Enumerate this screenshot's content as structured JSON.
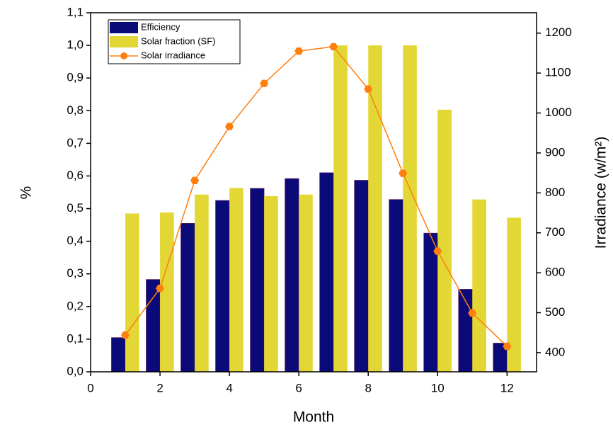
{
  "chart_data": {
    "type": "bar-line",
    "x_label": "Month",
    "y_label": "%",
    "y2_label": "Irradiance (w/m²)",
    "x": [
      1,
      2,
      3,
      4,
      5,
      6,
      7,
      8,
      9,
      10,
      11,
      12
    ],
    "series": [
      {
        "name": "Efficiency",
        "type": "bar",
        "color": "#0a0a78",
        "values": [
          0.105,
          0.283,
          0.455,
          0.525,
          0.562,
          0.592,
          0.61,
          0.587,
          0.528,
          0.425,
          0.253,
          0.088
        ]
      },
      {
        "name": "Solar fraction (SF)",
        "type": "bar",
        "color": "#e3d735",
        "values": [
          0.485,
          0.488,
          0.543,
          0.563,
          0.538,
          0.543,
          1.0,
          1.0,
          1.0,
          0.803,
          0.528,
          0.472
        ]
      },
      {
        "name": "Solar irradiance",
        "type": "line",
        "axis": "y2",
        "color": "#ff7f0e",
        "values": [
          444,
          561,
          831,
          966,
          1074,
          1155,
          1166,
          1060,
          849,
          654,
          499,
          416
        ]
      }
    ],
    "xlim": [
      0,
      12.85
    ],
    "xticks": [
      0,
      2,
      4,
      6,
      8,
      10,
      12
    ],
    "ylim": [
      0,
      1.1
    ],
    "yticks": [
      {
        "value": 0,
        "label": "0,0"
      },
      {
        "value": 0.1,
        "label": "0,1"
      },
      {
        "value": 0.2,
        "label": "0,2"
      },
      {
        "value": 0.3,
        "label": "0,3"
      },
      {
        "value": 0.4,
        "label": "0,4"
      },
      {
        "value": 0.5,
        "label": "0,5"
      },
      {
        "value": 0.6,
        "label": "0,6"
      },
      {
        "value": 0.7,
        "label": "0,7"
      },
      {
        "value": 0.8,
        "label": "0,8"
      },
      {
        "value": 0.9,
        "label": "0,9"
      },
      {
        "value": 1.0,
        "label": "1,0"
      },
      {
        "value": 1.1,
        "label": "1,1"
      }
    ],
    "y2lim": [
      352,
      1251
    ],
    "y2ticks": [
      400,
      500,
      600,
      700,
      800,
      900,
      1000,
      1100,
      1200
    ],
    "legend": "upper left"
  }
}
